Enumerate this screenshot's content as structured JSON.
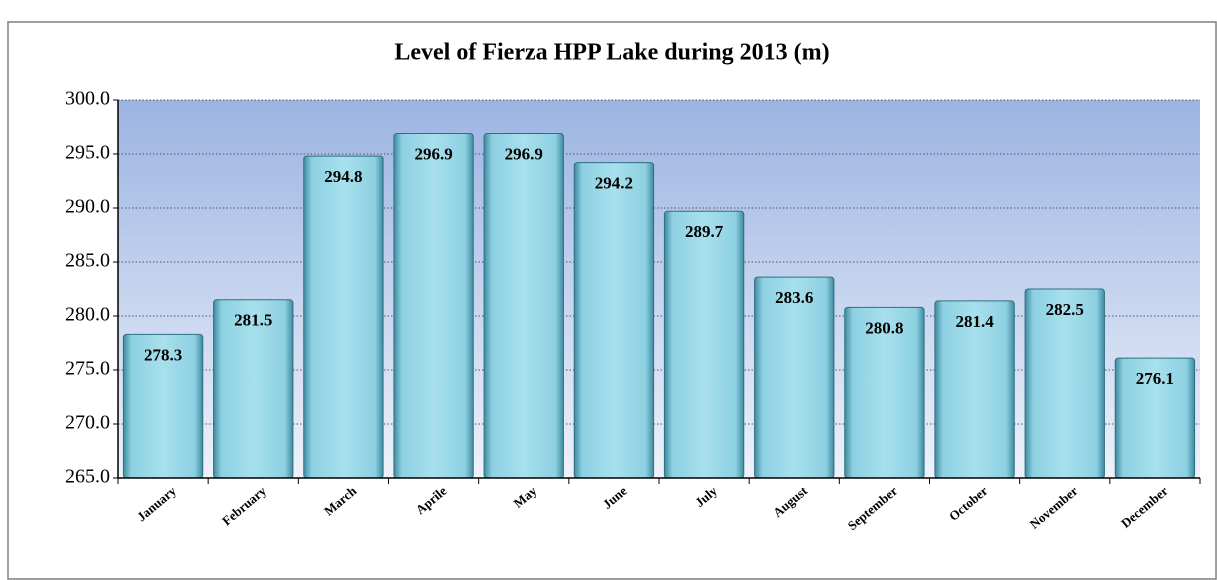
{
  "chart_data": {
    "type": "bar",
    "title": "Level of Fierza HPP Lake during 2013 (m)",
    "categories": [
      "January",
      "February",
      "March",
      "Aprile",
      "May",
      "June",
      "July",
      "August",
      "September",
      "October",
      "November",
      "December"
    ],
    "values": [
      278.3,
      281.5,
      294.8,
      296.9,
      296.9,
      294.2,
      289.7,
      283.6,
      280.8,
      281.4,
      282.5,
      276.1
    ],
    "color": "#a3dcea",
    "ylim": [
      265,
      300
    ],
    "yticks": [
      {
        "value": 265,
        "label": "265.0"
      },
      {
        "value": 270,
        "label": "270.0"
      },
      {
        "value": 275,
        "label": "275.0"
      },
      {
        "value": 280,
        "label": "280.0"
      },
      {
        "value": 285,
        "label": "285.0"
      },
      {
        "value": 290,
        "label": "290.0"
      },
      {
        "value": 295,
        "label": "295.0"
      },
      {
        "value": 300,
        "label": "300.0"
      }
    ],
    "grid": true
  }
}
